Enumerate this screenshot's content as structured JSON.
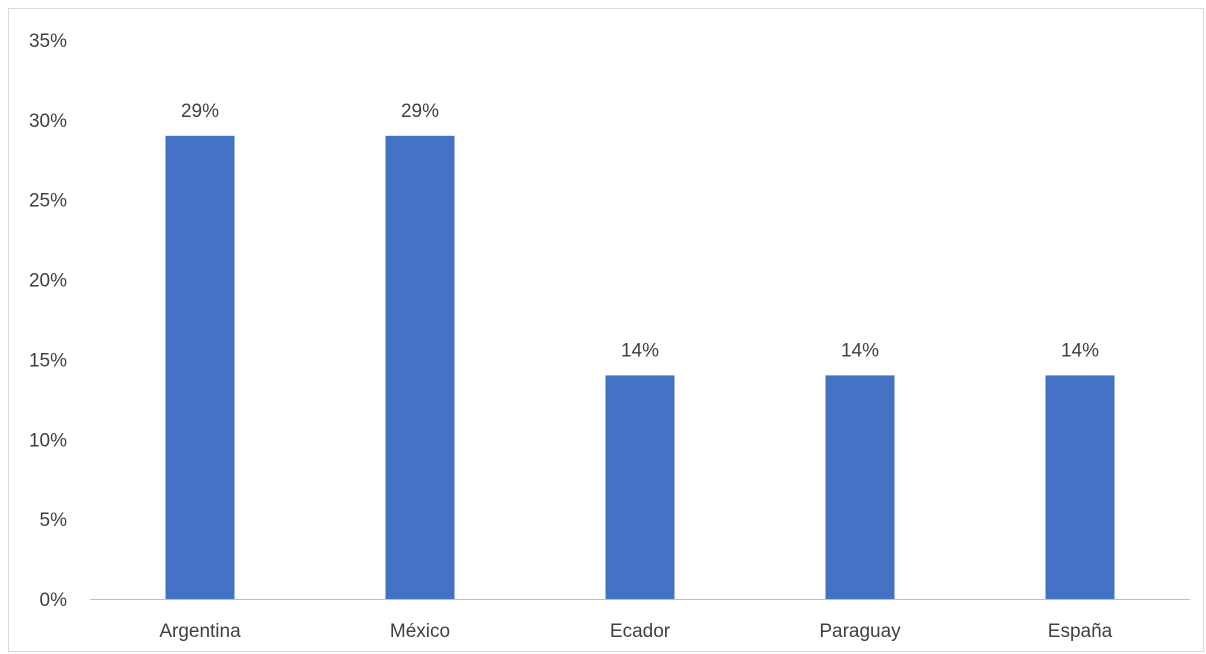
{
  "chart_data": {
    "type": "bar",
    "categories": [
      "Argentina",
      "México",
      "Ecador",
      "Paraguay",
      "España"
    ],
    "values": [
      29,
      29,
      14,
      14,
      14
    ],
    "value_labels": [
      "29%",
      "29%",
      "14%",
      "14%",
      "14%"
    ],
    "y_ticks": [
      0,
      5,
      10,
      15,
      20,
      25,
      30,
      35
    ],
    "y_tick_labels": [
      "0%",
      "5%",
      "10%",
      "15%",
      "20%",
      "25%",
      "30%",
      "35%"
    ],
    "ylim": [
      0,
      35
    ],
    "grid": false,
    "legend": "none",
    "colors": {
      "bar": "#4472C4",
      "axis": "#BFBFBF",
      "text": "#404040",
      "frame": "#D9D9D9"
    }
  }
}
